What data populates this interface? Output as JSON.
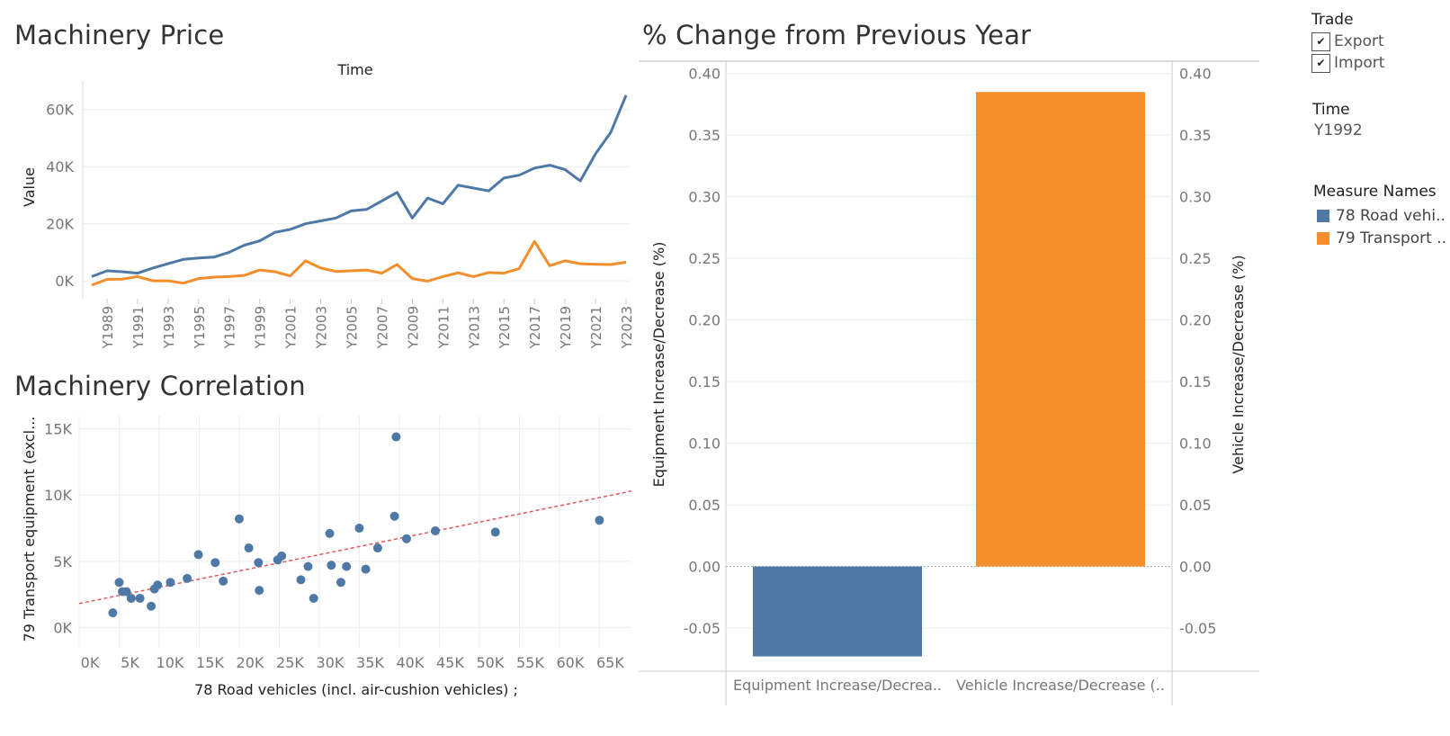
{
  "titles": {
    "price": "Machinery Price",
    "correlation": "Machinery Correlation",
    "pct_change": "% Change from Previous Year"
  },
  "colors": {
    "blue": "#4e79a7",
    "orange": "#f28e2b",
    "trend": "#e15759",
    "grid": "#eeeeee",
    "axis_text": "#777777"
  },
  "filters": {
    "trade": {
      "title": "Trade",
      "options": [
        {
          "label": "Export",
          "checked": true
        },
        {
          "label": "Import",
          "checked": true
        }
      ]
    },
    "time": {
      "title": "Time",
      "value": "Y1992"
    }
  },
  "legend": {
    "title": "Measure Names",
    "items": [
      {
        "label": "78 Road vehi..",
        "color": "#4e79a7"
      },
      {
        "label": "79 Transport ..",
        "color": "#f28e2b"
      }
    ]
  },
  "chart_data": [
    {
      "type": "line",
      "title": "Machinery Price",
      "xlabel": "Time",
      "ylabel": "Value",
      "ylim": [
        -5000,
        70000
      ],
      "yticks": [
        0,
        20000,
        40000,
        60000
      ],
      "ytick_labels": [
        "0K",
        "20K",
        "40K",
        "60K"
      ],
      "x": [
        "Y1988",
        "Y1989",
        "Y1990",
        "Y1991",
        "Y1992",
        "Y1993",
        "Y1994",
        "Y1995",
        "Y1996",
        "Y1997",
        "Y1998",
        "Y1999",
        "Y2000",
        "Y2001",
        "Y2002",
        "Y2003",
        "Y2004",
        "Y2005",
        "Y2006",
        "Y2007",
        "Y2008",
        "Y2009",
        "Y2010",
        "Y2011",
        "Y2012",
        "Y2013",
        "Y2014",
        "Y2015",
        "Y2016",
        "Y2017",
        "Y2018",
        "Y2019",
        "Y2020",
        "Y2021",
        "Y2022",
        "Y2023"
      ],
      "x_tick_labels": [
        "Y1989",
        "Y1991",
        "Y1993",
        "Y1995",
        "Y1997",
        "Y1999",
        "Y2001",
        "Y2003",
        "Y2005",
        "Y2007",
        "Y2009",
        "Y2011",
        "Y2013",
        "Y2015",
        "Y2017",
        "Y2019",
        "Y2021",
        "Y2023"
      ],
      "series": [
        {
          "name": "78 Road vehicles",
          "color": "#4e79a7",
          "values": [
            1500,
            3500,
            3200,
            2700,
            4500,
            6000,
            7500,
            8000,
            8300,
            10000,
            12500,
            14000,
            17000,
            18000,
            20000,
            21000,
            22000,
            24500,
            25000,
            28000,
            31000,
            22000,
            29000,
            27000,
            33500,
            32500,
            31500,
            36000,
            37000,
            39500,
            40500,
            39000,
            35000,
            44500,
            52000,
            65000
          ]
        },
        {
          "name": "79 Transport equipment",
          "color": "#f28e2b",
          "values": [
            -1500,
            500,
            600,
            1500,
            0,
            0,
            -800,
            800,
            1300,
            1500,
            1900,
            3800,
            3200,
            1700,
            7000,
            4500,
            3300,
            3500,
            3800,
            2700,
            5700,
            800,
            -100,
            1500,
            2800,
            1500,
            2900,
            2700,
            4300,
            13800,
            5300,
            7000,
            6000,
            5800,
            5700,
            6500
          ]
        }
      ],
      "grid": true
    },
    {
      "type": "scatter",
      "title": "Machinery Correlation",
      "xlabel": "78 Road vehicles (incl. air-cushion vehicles) ;",
      "ylabel": "79 Transport equipment (excl...",
      "xlim": [
        0,
        69000
      ],
      "ylim": [
        -1000,
        16000
      ],
      "xticks": [
        0,
        5000,
        10000,
        15000,
        20000,
        25000,
        30000,
        35000,
        40000,
        45000,
        50000,
        55000,
        60000,
        65000
      ],
      "xtick_labels": [
        "0K",
        "5K",
        "10K",
        "15K",
        "20K",
        "25K",
        "30K",
        "35K",
        "40K",
        "45K",
        "50K",
        "55K",
        "60K",
        "65K"
      ],
      "yticks": [
        0,
        5000,
        10000,
        15000
      ],
      "ytick_labels": [
        "0K",
        "5K",
        "10K",
        "15K"
      ],
      "points": [
        [
          4200,
          1100
        ],
        [
          5000,
          3400
        ],
        [
          5400,
          2700
        ],
        [
          5900,
          2700
        ],
        [
          6500,
          2200
        ],
        [
          7600,
          2200
        ],
        [
          9000,
          1600
        ],
        [
          9400,
          2900
        ],
        [
          9800,
          3200
        ],
        [
          11400,
          3400
        ],
        [
          13500,
          3700
        ],
        [
          14900,
          5500
        ],
        [
          17000,
          4900
        ],
        [
          18000,
          3500
        ],
        [
          20000,
          8200
        ],
        [
          21200,
          6000
        ],
        [
          22400,
          4900
        ],
        [
          22500,
          2800
        ],
        [
          24800,
          5100
        ],
        [
          25300,
          5400
        ],
        [
          27700,
          3600
        ],
        [
          28600,
          4600
        ],
        [
          29300,
          2200
        ],
        [
          31300,
          7100
        ],
        [
          31500,
          4700
        ],
        [
          32700,
          3400
        ],
        [
          33400,
          4600
        ],
        [
          35000,
          7500
        ],
        [
          35800,
          4400
        ],
        [
          37300,
          6000
        ],
        [
          39400,
          8400
        ],
        [
          39600,
          14400
        ],
        [
          40900,
          6700
        ],
        [
          44500,
          7300
        ],
        [
          52000,
          7200
        ],
        [
          65000,
          8100
        ]
      ],
      "trendline": {
        "x": [
          0,
          69000
        ],
        "y": [
          1800,
          10300
        ]
      },
      "grid": true
    },
    {
      "type": "bar",
      "title": "% Change from Previous Year",
      "categories": [
        "Equipment Increase/Decrea..",
        "Vehicle Increase/Decrease (.."
      ],
      "values": [
        -0.073,
        0.385
      ],
      "colors": [
        "#4e79a7",
        "#f28e2b"
      ],
      "ylabel_left": "Equipment Increase/Decrease (%)",
      "ylabel_right": "Vehicle Increase/Decrease (%)",
      "ylim": [
        -0.085,
        0.41
      ],
      "yticks": [
        -0.05,
        0,
        0.05,
        0.1,
        0.15,
        0.2,
        0.25,
        0.3,
        0.35,
        0.4
      ],
      "ytick_labels": [
        "-0.05",
        "0.00",
        "0.05",
        "0.10",
        "0.15",
        "0.20",
        "0.25",
        "0.30",
        "0.35",
        "0.40"
      ],
      "grid": true
    }
  ]
}
